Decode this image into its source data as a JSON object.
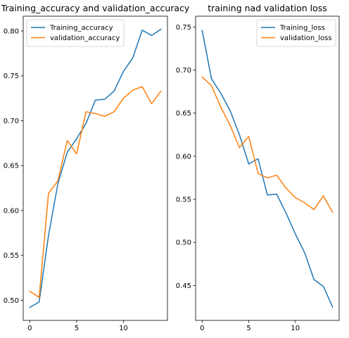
{
  "chart_data": [
    {
      "type": "line",
      "title": "Training_accuracy and validation_accuracy",
      "xlabel": "",
      "ylabel": "",
      "xlim": [
        -0.7,
        14.7
      ],
      "ylim": [
        0.4775,
        0.8165
      ],
      "xticks": [
        0,
        5,
        10
      ],
      "xtick_labels": [
        "0",
        "5",
        "10"
      ],
      "yticks": [
        0.5,
        0.55,
        0.6,
        0.65,
        0.7,
        0.75,
        0.8
      ],
      "ytick_labels": [
        "0.50",
        "0.55",
        "0.60",
        "0.65",
        "0.70",
        "0.75",
        "0.80"
      ],
      "grid": false,
      "legend_position": "upper-left",
      "x": [
        0,
        1,
        2,
        3,
        4,
        5,
        6,
        7,
        8,
        9,
        10,
        11,
        12,
        13,
        14
      ],
      "series": [
        {
          "name": "Training_accuracy",
          "color": "#1f77b4",
          "values": [
            0.492,
            0.498,
            0.572,
            0.63,
            0.665,
            0.68,
            0.697,
            0.723,
            0.724,
            0.733,
            0.755,
            0.77,
            0.801,
            0.795,
            0.802
          ]
        },
        {
          "name": "validation_accuracy",
          "color": "#ff7f0e",
          "values": [
            0.51,
            0.503,
            0.619,
            0.633,
            0.678,
            0.663,
            0.71,
            0.708,
            0.705,
            0.71,
            0.725,
            0.734,
            0.738,
            0.719,
            0.733
          ]
        }
      ]
    },
    {
      "type": "line",
      "title": "training nad validation loss",
      "xlabel": "",
      "ylabel": "",
      "xlim": [
        -0.7,
        14.7
      ],
      "ylim": [
        0.4095,
        0.7625
      ],
      "xticks": [
        0,
        5,
        10
      ],
      "xtick_labels": [
        "0",
        "5",
        "10"
      ],
      "yticks": [
        0.45,
        0.5,
        0.55,
        0.6,
        0.65,
        0.7,
        0.75
      ],
      "ytick_labels": [
        "0.45",
        "0.50",
        "0.55",
        "0.60",
        "0.65",
        "0.70",
        "0.75"
      ],
      "grid": false,
      "legend_position": "upper-right",
      "x": [
        0,
        1,
        2,
        3,
        4,
        5,
        6,
        7,
        8,
        9,
        10,
        11,
        12,
        13,
        14
      ],
      "series": [
        {
          "name": "Training_loss",
          "color": "#1f77b4",
          "values": [
            0.746,
            0.69,
            0.673,
            0.653,
            0.625,
            0.591,
            0.597,
            0.555,
            0.556,
            0.534,
            0.51,
            0.488,
            0.457,
            0.449,
            0.425
          ]
        },
        {
          "name": "validation_loss",
          "color": "#ff7f0e",
          "values": [
            0.692,
            0.682,
            0.657,
            0.636,
            0.61,
            0.623,
            0.58,
            0.575,
            0.578,
            0.563,
            0.552,
            0.546,
            0.538,
            0.554,
            0.535
          ]
        }
      ]
    }
  ]
}
